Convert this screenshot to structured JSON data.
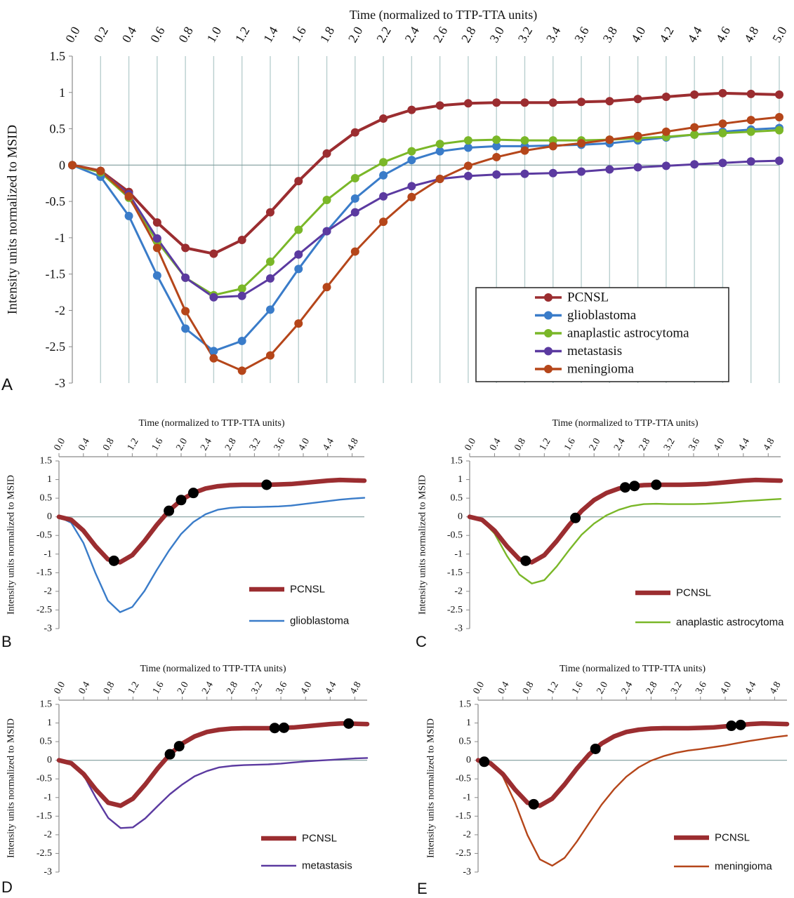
{
  "chart_data": [
    {
      "panel": "A",
      "type": "line",
      "title": "Time (normalized to TTP-TTA units)",
      "xlabel": "Time (normalized to TTP-TTA units)",
      "ylabel": "Intensity units normalized to MSID",
      "panel_label": "A",
      "xlim": [
        0,
        5
      ],
      "ylim": [
        -3,
        1.5
      ],
      "x_ticks": [
        "0.0",
        "0.2",
        "0.4",
        "0.6",
        "0.8",
        "1.0",
        "1.2",
        "1.4",
        "1.6",
        "1.8",
        "2.0",
        "2.2",
        "2.4",
        "2.6",
        "2.8",
        "3.0",
        "3.2",
        "3.4",
        "3.6",
        "3.8",
        "4.0",
        "4.2",
        "4.4",
        "4.6",
        "4.8",
        "5.0"
      ],
      "y_ticks": [
        "1.5",
        "1",
        "0.5",
        "0",
        "-0.5",
        "-1",
        "-1.5",
        "-2",
        "-2.5",
        "-3"
      ],
      "grid": "vertical",
      "legend_position": "bottom-right",
      "x": [
        0,
        0.2,
        0.4,
        0.6,
        0.8,
        1.0,
        1.2,
        1.4,
        1.6,
        1.8,
        2.0,
        2.2,
        2.4,
        2.6,
        2.8,
        3.0,
        3.2,
        3.4,
        3.6,
        3.8,
        4.0,
        4.2,
        4.4,
        4.6,
        4.8,
        5.0
      ],
      "series": [
        {
          "name": "PCNSL",
          "color": "#9b2d30",
          "values": [
            0,
            -0.08,
            -0.37,
            -0.79,
            -1.14,
            -1.22,
            -1.03,
            -0.65,
            -0.22,
            0.16,
            0.45,
            0.64,
            0.76,
            0.82,
            0.85,
            0.86,
            0.86,
            0.86,
            0.87,
            0.88,
            0.91,
            0.94,
            0.97,
            0.99,
            0.98,
            0.97
          ]
        },
        {
          "name": "glioblastoma",
          "color": "#3a7cc9",
          "values": [
            0,
            -0.16,
            -0.7,
            -1.52,
            -2.25,
            -2.56,
            -2.42,
            -1.99,
            -1.43,
            -0.91,
            -0.46,
            -0.14,
            0.07,
            0.19,
            0.24,
            0.26,
            0.26,
            0.27,
            0.28,
            0.3,
            0.34,
            0.38,
            0.42,
            0.46,
            0.49,
            0.51
          ]
        },
        {
          "name": "anaplastic astrocytoma",
          "color": "#7ab728",
          "values": [
            0,
            -0.1,
            -0.45,
            -1.05,
            -1.55,
            -1.79,
            -1.7,
            -1.33,
            -0.89,
            -0.48,
            -0.18,
            0.04,
            0.19,
            0.29,
            0.34,
            0.35,
            0.34,
            0.34,
            0.34,
            0.35,
            0.37,
            0.39,
            0.42,
            0.44,
            0.46,
            0.48
          ]
        },
        {
          "name": "metastasis",
          "color": "#5b3aa0",
          "values": [
            0,
            -0.08,
            -0.4,
            -1.01,
            -1.55,
            -1.82,
            -1.8,
            -1.56,
            -1.23,
            -0.91,
            -0.65,
            -0.43,
            -0.29,
            -0.19,
            -0.15,
            -0.13,
            -0.12,
            -0.11,
            -0.09,
            -0.06,
            -0.03,
            -0.01,
            0.01,
            0.03,
            0.05,
            0.06
          ]
        },
        {
          "name": "meningioma",
          "color": "#b5461a",
          "values": [
            0,
            -0.08,
            -0.43,
            -1.14,
            -2.01,
            -2.66,
            -2.83,
            -2.62,
            -2.18,
            -1.68,
            -1.19,
            -0.78,
            -0.44,
            -0.19,
            -0.01,
            0.11,
            0.2,
            0.26,
            0.3,
            0.35,
            0.4,
            0.46,
            0.52,
            0.57,
            0.62,
            0.66
          ]
        }
      ]
    },
    {
      "panel": "B",
      "type": "line",
      "title": "Time (normalized to TTP-TTA units)",
      "ylabel": "Intensity units normalized to MSID",
      "panel_label": "B",
      "xlim": [
        0,
        5
      ],
      "ylim": [
        -3,
        1.5
      ],
      "x_ticks": [
        "0.0",
        "0.4",
        "0.8",
        "1.2",
        "1.6",
        "2.0",
        "2.4",
        "2.8",
        "3.2",
        "3.6",
        "4.0",
        "4.4",
        "4.8"
      ],
      "y_ticks": [
        "1.5",
        "1",
        "0.5",
        "0",
        "-0.5",
        "-1",
        "-1.5",
        "-2",
        "-2.5",
        "-3"
      ],
      "legend_position": "bottom-right",
      "comparison": "glioblastoma",
      "marked_x": [
        0.9,
        1.8,
        2.0,
        2.2,
        3.4
      ]
    },
    {
      "panel": "C",
      "type": "line",
      "title": "Time (normalized to TTP-TTA units)",
      "ylabel": "Intensity units normalized to MSID",
      "panel_label": "C",
      "xlim": [
        0,
        5
      ],
      "ylim": [
        -3,
        1.5
      ],
      "x_ticks": [
        "0.0",
        "0.4",
        "0.8",
        "1.2",
        "1.6",
        "2.0",
        "2.4",
        "2.8",
        "3.2",
        "3.6",
        "4.0",
        "4.4",
        "4.8"
      ],
      "y_ticks": [
        "1.5",
        "1",
        "0.5",
        "0",
        "-0.5",
        "-1",
        "-1.5",
        "-2",
        "-2.5",
        "-3"
      ],
      "legend_position": "bottom-right",
      "comparison": "anaplastic astrocytoma",
      "marked_x": [
        0.9,
        1.7,
        2.5,
        2.65,
        3.0
      ]
    },
    {
      "panel": "D",
      "type": "line",
      "title": "Time (normalized to TTP-TTA units)",
      "ylabel": "Intensity units normalized to MSID",
      "panel_label": "D",
      "xlim": [
        0,
        5
      ],
      "ylim": [
        -3,
        1.5
      ],
      "x_ticks": [
        "0.0",
        "0.4",
        "0.8",
        "1.2",
        "1.6",
        "2.0",
        "2.4",
        "2.8",
        "3.2",
        "3.6",
        "4.0",
        "4.4",
        "4.8"
      ],
      "y_ticks": [
        "1.5",
        "1",
        "0.5",
        "0",
        "-0.5",
        "-1",
        "-1.5",
        "-2",
        "-2.5",
        "-3"
      ],
      "legend_position": "bottom-right",
      "comparison": "metastasis",
      "marked_x": [
        1.8,
        1.95,
        3.5,
        3.65,
        4.7
      ]
    },
    {
      "panel": "E",
      "type": "line",
      "title": "Time (normalized to TTP-TTA units)",
      "ylabel": "Intensity units normalized to MSID",
      "panel_label": "E",
      "xlim": [
        0,
        5
      ],
      "ylim": [
        -3,
        1.5
      ],
      "x_ticks": [
        "0.0",
        "0.4",
        "0.8",
        "1.2",
        "1.6",
        "2.0",
        "2.4",
        "2.8",
        "3.2",
        "3.6",
        "4.0",
        "4.4",
        "4.8"
      ],
      "y_ticks": [
        "1.5",
        "1",
        "0.5",
        "0",
        "-0.5",
        "-1",
        "-1.5",
        "-2",
        "-2.5",
        "-3"
      ],
      "legend_position": "bottom-right",
      "comparison": "meningioma",
      "marked_x": [
        0.1,
        0.9,
        1.9,
        4.1,
        4.25
      ]
    }
  ]
}
